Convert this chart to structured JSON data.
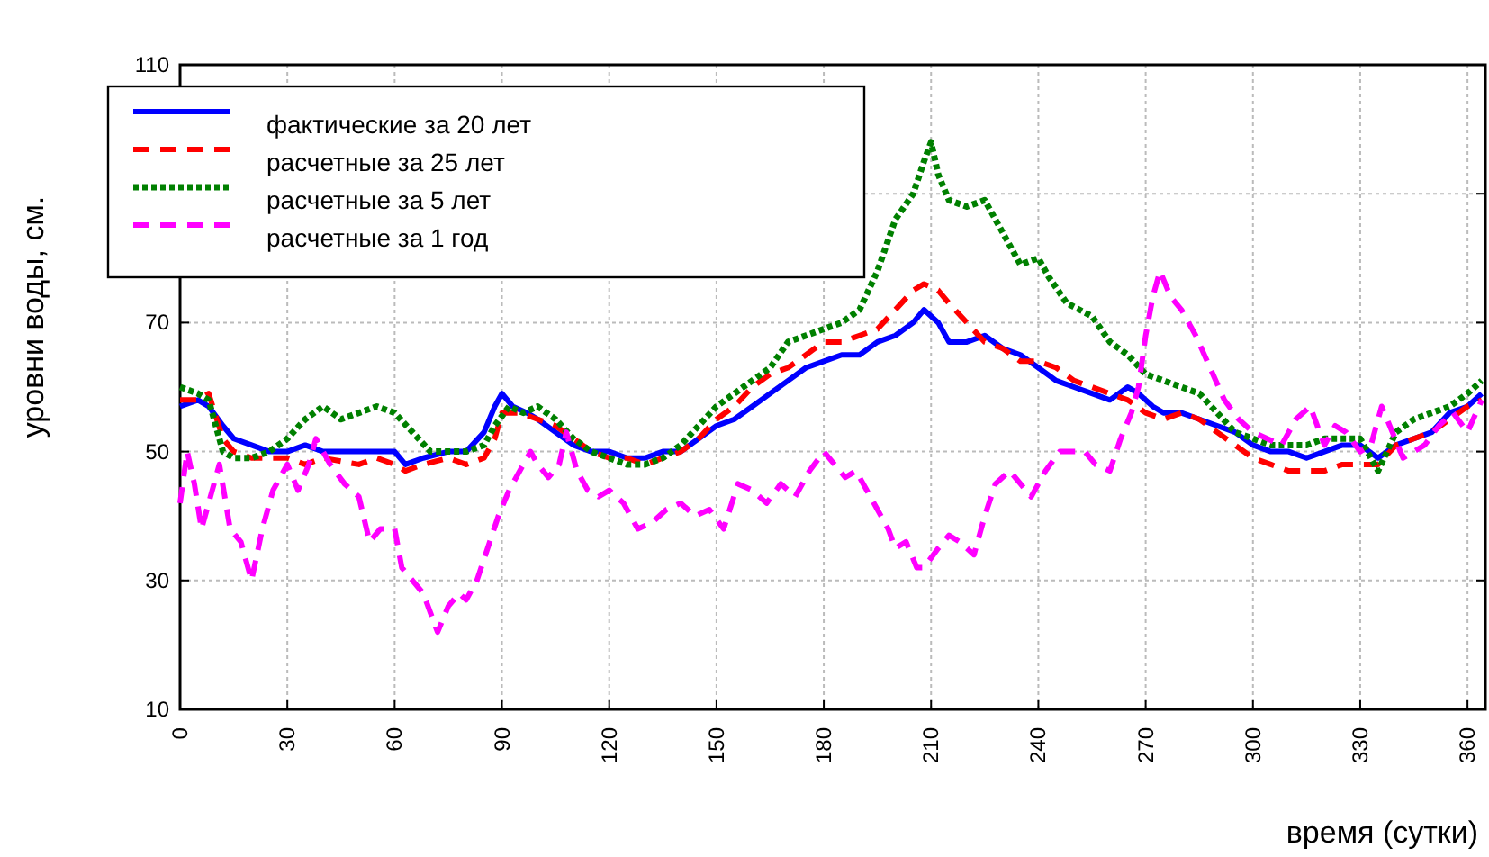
{
  "chart_data": {
    "type": "line",
    "xlabel": "время (сутки)",
    "ylabel": "уровни воды,  см.",
    "xlim": [
      0,
      365
    ],
    "ylim": [
      10,
      110
    ],
    "xticks": [
      0,
      30,
      60,
      90,
      120,
      150,
      180,
      210,
      240,
      270,
      300,
      330,
      360
    ],
    "yticks": [
      10,
      30,
      50,
      70,
      {
        "value": 90,
        "label": null
      },
      110
    ],
    "grid": true,
    "legend": "top left",
    "marker": "none",
    "series": [
      {
        "name": "фактические за 20 лет",
        "color": "#0000ff",
        "line_style": "solid",
        "x": [
          0,
          5,
          8,
          12,
          15,
          20,
          25,
          30,
          35,
          40,
          50,
          60,
          63,
          68,
          75,
          80,
          85,
          88,
          90,
          93,
          97,
          100,
          105,
          110,
          115,
          120,
          125,
          130,
          135,
          140,
          145,
          150,
          155,
          160,
          165,
          170,
          175,
          180,
          185,
          190,
          195,
          200,
          205,
          208,
          212,
          215,
          220,
          225,
          230,
          235,
          240,
          245,
          250,
          255,
          260,
          265,
          268,
          272,
          275,
          280,
          285,
          290,
          295,
          300,
          305,
          310,
          315,
          320,
          325,
          330,
          335,
          340,
          345,
          350,
          355,
          360,
          364
        ],
        "values": [
          57,
          58,
          57,
          54,
          52,
          51,
          50,
          50,
          51,
          50,
          50,
          50,
          48,
          49,
          50,
          50,
          53,
          57,
          59,
          57,
          56,
          55,
          53,
          51,
          50,
          50,
          49,
          49,
          50,
          50,
          52,
          54,
          55,
          57,
          59,
          61,
          63,
          64,
          65,
          65,
          67,
          68,
          70,
          72,
          70,
          67,
          67,
          68,
          66,
          65,
          63,
          61,
          60,
          59,
          58,
          60,
          59,
          57,
          56,
          56,
          55,
          54,
          53,
          51,
          50,
          50,
          49,
          50,
          51,
          51,
          49,
          51,
          52,
          53,
          56,
          57,
          59
        ]
      },
      {
        "name": "расчетные за 25 лет",
        "color": "#ff0000",
        "line_style": "dashed",
        "x": [
          0,
          5,
          8,
          12,
          15,
          20,
          25,
          30,
          35,
          40,
          50,
          55,
          60,
          63,
          68,
          75,
          80,
          85,
          88,
          90,
          95,
          100,
          105,
          110,
          115,
          120,
          125,
          130,
          135,
          140,
          145,
          150,
          155,
          160,
          165,
          170,
          175,
          180,
          185,
          190,
          195,
          200,
          205,
          208,
          212,
          215,
          220,
          225,
          230,
          235,
          240,
          245,
          250,
          255,
          260,
          265,
          270,
          275,
          280,
          285,
          290,
          295,
          300,
          305,
          310,
          315,
          320,
          325,
          330,
          335,
          340,
          345,
          350,
          355,
          360,
          364
        ],
        "values": [
          58,
          58,
          59,
          52,
          50,
          49,
          49,
          49,
          48,
          49,
          48,
          49,
          48,
          47,
          48,
          49,
          48,
          49,
          52,
          56,
          56,
          55,
          54,
          52,
          50,
          49,
          49,
          48,
          49,
          50,
          52,
          55,
          57,
          60,
          62,
          63,
          65,
          67,
          67,
          68,
          69,
          72,
          75,
          76,
          75,
          73,
          70,
          67,
          66,
          64,
          64,
          63,
          61,
          60,
          59,
          58,
          56,
          55,
          56,
          55,
          53,
          51,
          49,
          48,
          47,
          47,
          47,
          48,
          48,
          48,
          51,
          52,
          53,
          55,
          57,
          58
        ]
      },
      {
        "name": "расчетные за 5 лет",
        "color": "#008000",
        "line_style": "dotted",
        "x": [
          0,
          5,
          8,
          12,
          15,
          20,
          25,
          30,
          35,
          40,
          45,
          50,
          55,
          60,
          65,
          70,
          75,
          80,
          85,
          88,
          92,
          96,
          100,
          105,
          110,
          115,
          120,
          125,
          130,
          135,
          140,
          145,
          150,
          155,
          160,
          165,
          170,
          175,
          180,
          185,
          190,
          195,
          200,
          205,
          208,
          210,
          212,
          215,
          220,
          225,
          230,
          235,
          240,
          243,
          248,
          255,
          260,
          265,
          270,
          275,
          280,
          285,
          290,
          295,
          300,
          305,
          310,
          315,
          320,
          325,
          330,
          335,
          340,
          345,
          350,
          355,
          360,
          364
        ],
        "values": [
          60,
          59,
          58,
          50,
          49,
          49,
          50,
          52,
          55,
          57,
          55,
          56,
          57,
          56,
          53,
          50,
          50,
          50,
          51,
          54,
          57,
          56,
          57,
          55,
          52,
          50,
          49,
          48,
          48,
          49,
          51,
          54,
          57,
          59,
          61,
          63,
          67,
          68,
          69,
          70,
          72,
          78,
          86,
          90,
          95,
          98,
          93,
          89,
          88,
          89,
          84,
          79,
          80,
          77,
          73,
          71,
          67,
          65,
          62,
          61,
          60,
          59,
          56,
          53,
          52,
          51,
          51,
          51,
          52,
          52,
          52,
          47,
          53,
          55,
          56,
          57,
          59,
          61
        ]
      },
      {
        "name": "расчетные за 1 год",
        "color": "#ff00ff",
        "line_style": "dashed",
        "x": [
          0,
          2,
          4,
          6,
          9,
          11,
          14,
          17,
          20,
          23,
          26,
          30,
          33,
          36,
          38,
          42,
          46,
          50,
          53,
          56,
          60,
          62,
          65,
          68,
          70,
          72,
          75,
          78,
          80,
          83,
          86,
          89,
          92,
          95,
          98,
          100,
          103,
          106,
          108,
          111,
          114,
          117,
          120,
          124,
          128,
          132,
          136,
          140,
          144,
          148,
          152,
          156,
          160,
          164,
          168,
          172,
          176,
          180,
          183,
          186,
          189,
          192,
          195,
          198,
          200,
          203,
          206,
          208,
          212,
          215,
          218,
          222,
          225,
          228,
          232,
          235,
          238,
          242,
          246,
          250,
          253,
          256,
          260,
          263,
          266,
          268,
          270,
          272,
          274,
          277,
          280,
          284,
          288,
          292,
          296,
          300,
          304,
          308,
          312,
          316,
          320,
          323,
          326,
          330,
          333,
          336,
          339,
          342,
          345,
          348,
          352,
          356,
          360,
          364
        ],
        "values": [
          42,
          50,
          45,
          38,
          44,
          48,
          38,
          36,
          30,
          38,
          44,
          48,
          44,
          48,
          52,
          48,
          45,
          43,
          36,
          38,
          38,
          32,
          30,
          28,
          25,
          22,
          26,
          28,
          27,
          30,
          35,
          40,
          44,
          47,
          50,
          48,
          46,
          48,
          53,
          47,
          44,
          43,
          44,
          42,
          38,
          39,
          41,
          42,
          40,
          41,
          38,
          45,
          44,
          42,
          45,
          43,
          47,
          50,
          48,
          46,
          47,
          44,
          41,
          38,
          35,
          36,
          32,
          32,
          35,
          37,
          36,
          34,
          40,
          45,
          47,
          45,
          43,
          47,
          50,
          50,
          50,
          48,
          47,
          52,
          56,
          60,
          68,
          74,
          78,
          74,
          72,
          68,
          63,
          58,
          55,
          53,
          52,
          51,
          55,
          57,
          51,
          54,
          53,
          50,
          51,
          57,
          53,
          49,
          50,
          51,
          54,
          56,
          53,
          58
        ]
      }
    ]
  }
}
